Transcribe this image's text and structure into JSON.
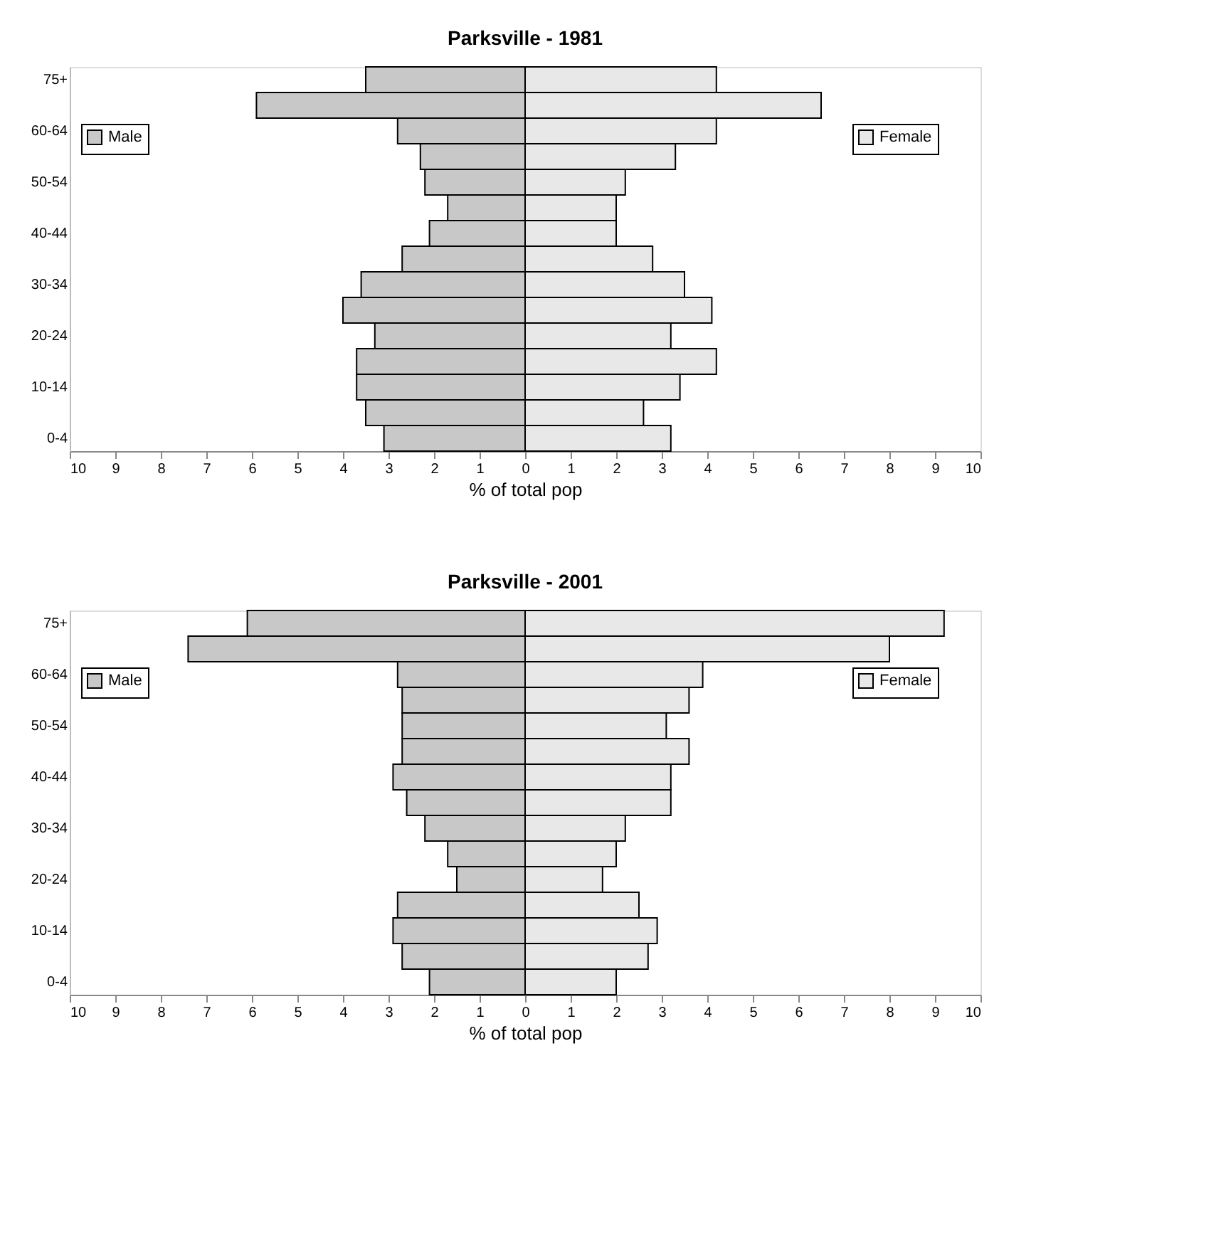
{
  "chart_data": [
    {
      "type": "bar",
      "title": "Parksville - 1981",
      "orientation": "horizontal",
      "stacked": true,
      "xlabel": "% of total pop",
      "categories": [
        "75+",
        null,
        "60-64",
        null,
        "50-54",
        null,
        "40-44",
        null,
        "30-34",
        null,
        "20-24",
        null,
        "10-14",
        null,
        "0-4"
      ],
      "series": [
        {
          "name": "Male",
          "color": "#c8c8c8",
          "values": [
            -3.5,
            -5.9,
            -2.8,
            -2.3,
            -2.2,
            -1.7,
            -2.1,
            -2.7,
            -3.6,
            -4.0,
            -3.3,
            -3.7,
            -3.7,
            -3.5,
            -3.1
          ]
        },
        {
          "name": "Female",
          "color": "#e8e8e8",
          "values": [
            4.2,
            6.5,
            4.2,
            3.3,
            2.2,
            2.0,
            2.0,
            2.8,
            3.5,
            4.1,
            3.2,
            4.2,
            3.4,
            2.6,
            3.2
          ]
        }
      ],
      "xlim": [
        -10,
        10
      ],
      "xticks": [
        {
          "value": -10,
          "label": "10"
        },
        {
          "value": -9,
          "label": "9"
        },
        {
          "value": -8,
          "label": "8"
        },
        {
          "value": -7,
          "label": "7"
        },
        {
          "value": -6,
          "label": "6"
        },
        {
          "value": -5,
          "label": "5"
        },
        {
          "value": -4,
          "label": "4"
        },
        {
          "value": -3,
          "label": "3"
        },
        {
          "value": -2,
          "label": "2"
        },
        {
          "value": -1,
          "label": "1"
        },
        0,
        1,
        2,
        3,
        4,
        5,
        6,
        7,
        8,
        9,
        10
      ],
      "legend": "top",
      "grid": false
    },
    {
      "type": "bar",
      "title": "Parksville - 2001",
      "orientation": "horizontal",
      "stacked": true,
      "xlabel": "% of total pop",
      "categories": [
        "75+",
        null,
        "60-64",
        null,
        "50-54",
        null,
        "40-44",
        null,
        "30-34",
        null,
        "20-24",
        null,
        "10-14",
        null,
        "0-4"
      ],
      "series": [
        {
          "name": "Male",
          "color": "#c8c8c8",
          "values": [
            -6.1,
            -7.4,
            -2.8,
            -2.7,
            -2.7,
            -2.7,
            -2.9,
            -2.6,
            -2.2,
            -1.7,
            -1.5,
            -2.8,
            -2.9,
            -2.7,
            -2.1
          ]
        },
        {
          "name": "Female",
          "color": "#e8e8e8",
          "values": [
            9.2,
            8.0,
            3.9,
            3.6,
            3.1,
            3.6,
            3.2,
            3.2,
            2.2,
            2.0,
            1.7,
            2.5,
            2.9,
            2.7,
            2.0
          ]
        }
      ],
      "xlim": [
        -10,
        10
      ],
      "xticks": [
        {
          "value": -10,
          "label": "10"
        },
        {
          "value": -9,
          "label": "9"
        },
        {
          "value": -8,
          "label": "8"
        },
        {
          "value": -7,
          "label": "7"
        },
        {
          "value": -6,
          "label": "6"
        },
        {
          "value": -5,
          "label": "5"
        },
        {
          "value": -4,
          "label": "4"
        },
        {
          "value": -3,
          "label": "3"
        },
        {
          "value": -2,
          "label": "2"
        },
        {
          "value": -1,
          "label": "1"
        },
        0,
        1,
        2,
        3,
        4,
        5,
        6,
        7,
        8,
        9,
        10
      ],
      "legend": "top",
      "grid": false
    }
  ]
}
